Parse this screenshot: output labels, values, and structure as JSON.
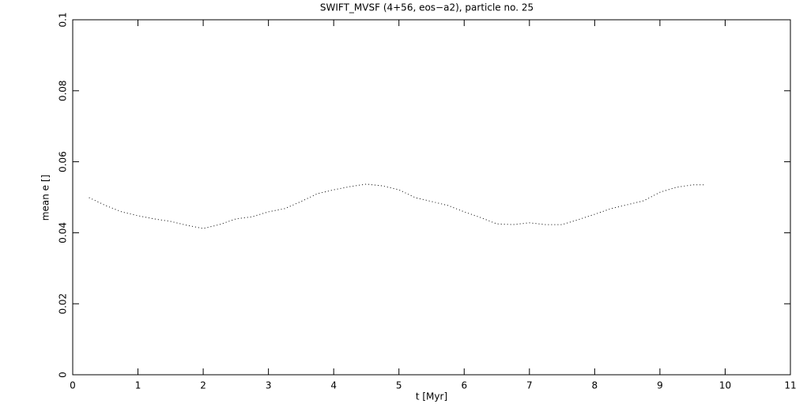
{
  "chart_data": {
    "type": "line",
    "title": "SWIFT_MVSF (4+56, eos−a2), particle no. 25",
    "x_label": "t [Myr]",
    "y_label": "mean e []",
    "xlim": [
      0,
      11
    ],
    "xticks": [
      0,
      1,
      2,
      3,
      4,
      5,
      6,
      7,
      8,
      9,
      10,
      11
    ],
    "ylim": [
      0,
      0.1
    ],
    "yticks": [
      0,
      0.02,
      0.04,
      0.06,
      0.08,
      0.1
    ],
    "series": [
      {
        "color": "#000000",
        "x": [
          0.25,
          0.5,
          0.75,
          1.0,
          1.25,
          1.5,
          1.75,
          2.0,
          2.25,
          2.5,
          2.75,
          3.0,
          3.25,
          3.5,
          3.75,
          4.0,
          4.25,
          4.5,
          4.75,
          5.0,
          5.25,
          5.5,
          5.75,
          6.0,
          6.25,
          6.5,
          6.75,
          7.0,
          7.25,
          7.5,
          7.75,
          8.0,
          8.25,
          8.5,
          8.75,
          9.0,
          9.25,
          9.5,
          9.7
        ],
        "values": [
          0.0499,
          0.0477,
          0.0459,
          0.0448,
          0.0439,
          0.0432,
          0.0421,
          0.0412,
          0.0423,
          0.0439,
          0.0445,
          0.0459,
          0.0468,
          0.0488,
          0.051,
          0.0521,
          0.053,
          0.0537,
          0.0532,
          0.0521,
          0.0499,
          0.0488,
          0.0477,
          0.0459,
          0.0443,
          0.0425,
          0.0423,
          0.0428,
          0.0423,
          0.0423,
          0.0437,
          0.0452,
          0.0468,
          0.0479,
          0.049,
          0.0514,
          0.0528,
          0.0535,
          0.0535
        ]
      }
    ]
  }
}
